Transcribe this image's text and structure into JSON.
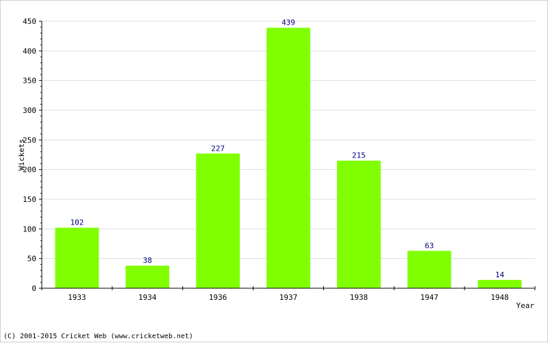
{
  "chart_data": {
    "type": "bar",
    "title": "",
    "xlabel": "Year",
    "ylabel": "Wickets",
    "categories": [
      "1933",
      "1934",
      "1936",
      "1937",
      "1938",
      "1947",
      "1948"
    ],
    "values": [
      102,
      38,
      227,
      439,
      215,
      63,
      14
    ],
    "data_labels": [
      "102",
      "38",
      "227",
      "439",
      "215",
      "63",
      "14"
    ],
    "ylim": [
      0,
      450
    ],
    "yticks": [
      0,
      50,
      100,
      150,
      200,
      250,
      300,
      350,
      400,
      450
    ],
    "yticks_labels": [
      "0",
      "50",
      "100",
      "150",
      "200",
      "250",
      "300",
      "350",
      "400",
      "450"
    ],
    "grid": true,
    "colors": {
      "bar": "#80ff00",
      "data_label": "#000080",
      "grid": "#dddddd",
      "axis": "#000000"
    }
  },
  "footer": {
    "copyright": "(C) 2001-2015 Cricket Web (www.cricketweb.net)"
  }
}
